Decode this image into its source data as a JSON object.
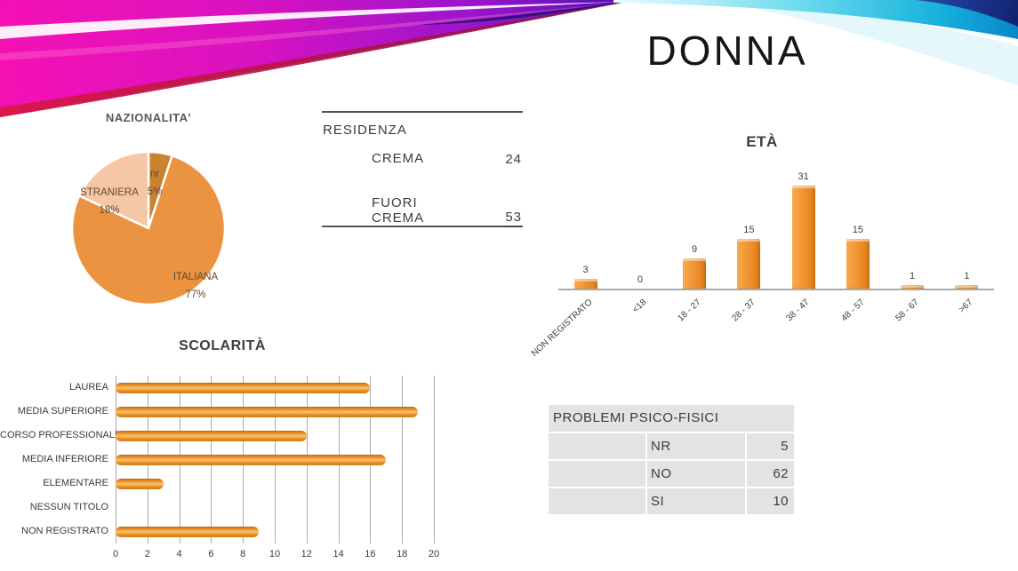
{
  "slide_title": "DONNA",
  "chart_data": [
    {
      "id": "nazionalita",
      "type": "pie",
      "title": "NAZIONALITA'",
      "legend_position": "none",
      "slices": [
        {
          "label": "nr",
          "pct": "5%",
          "value": 5,
          "color": "#c9822f"
        },
        {
          "label": "ITALIANA",
          "pct": "77%",
          "value": 77,
          "color": "#eb9340"
        },
        {
          "label": "STRANIERA",
          "pct": "18%",
          "value": 18,
          "color": "#f5c7a4"
        }
      ]
    },
    {
      "id": "residenza",
      "type": "table",
      "title": "RESIDENZA",
      "rows": [
        {
          "label": "CREMA",
          "value": "24"
        },
        {
          "label": "FUORI CREMA",
          "value": "53"
        }
      ]
    },
    {
      "id": "eta",
      "type": "bar",
      "title": "ETÀ",
      "categories": [
        "NON REGISTRATO",
        "<18",
        "18 - 27",
        "28 - 37",
        "38 - 47",
        "48 - 57",
        "58 - 67",
        ">67"
      ],
      "values": [
        3,
        0,
        9,
        15,
        31,
        15,
        1,
        1
      ],
      "ylim": [
        0,
        35
      ],
      "grid": false,
      "value_labels": true,
      "bar_color": "#ef9330"
    },
    {
      "id": "problemi",
      "type": "table",
      "title": "PROBLEMI PSICO-FISICI",
      "rows": [
        {
          "label": "NR",
          "value": "5"
        },
        {
          "label": "NO",
          "value": "62"
        },
        {
          "label": "SI",
          "value": "10"
        }
      ]
    },
    {
      "id": "scolarita",
      "type": "bar-horizontal",
      "title": "SCOLARITÀ",
      "categories": [
        "LAUREA",
        "MEDIA SUPERIORE",
        "CORSO PROFESSIONALE",
        "MEDIA INFERIORE",
        "ELEMENTARE",
        "NESSUN TITOLO",
        "NON REGISTRATO"
      ],
      "values": [
        16,
        19,
        12,
        17,
        3,
        0,
        9
      ],
      "xlim": [
        0,
        20
      ],
      "x_ticks": [
        0,
        2,
        4,
        6,
        8,
        10,
        12,
        14,
        16,
        18,
        20
      ],
      "grid": true,
      "value_labels": false,
      "bar_color": "#ef9330"
    }
  ],
  "colors": {
    "bar_orange": "#ef9330",
    "pie_italiana": "#eb9340",
    "pie_straniera": "#f5c7a4",
    "pie_nr": "#c9822f",
    "table_gray": "#e4e3e3",
    "text_dark": "#3b3b3b",
    "ribbon_magenta": "#e613b4",
    "ribbon_cyan": "#29c5ea"
  }
}
